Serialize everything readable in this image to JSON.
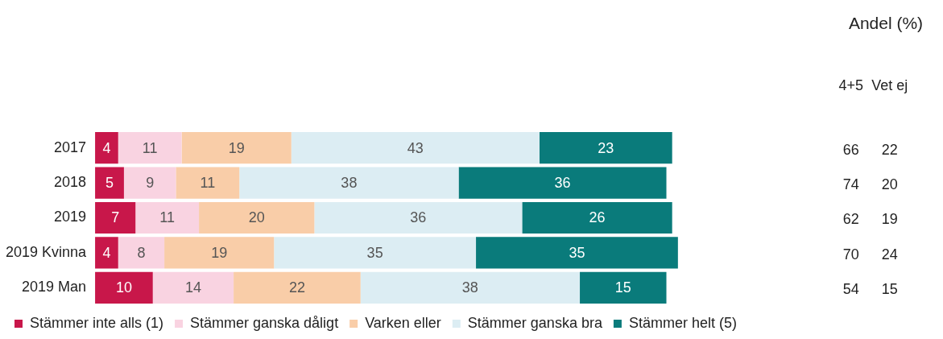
{
  "chart_data": [
    {
      "type": "bar",
      "orientation": "horizontal",
      "stacked": true,
      "data_labels": true,
      "legend": "bottom",
      "categories": [
        "2017",
        "2018",
        "2019",
        "2019 Kvinna",
        "2019 Man"
      ],
      "series": [
        {
          "name": "Stämmer inte alls (1)",
          "color": "#c8174a",
          "values": [
            4,
            5,
            7,
            4,
            10
          ]
        },
        {
          "name": "Stämmer ganska dåligt",
          "color": "#f9d3e1",
          "values": [
            11,
            9,
            11,
            8,
            14
          ]
        },
        {
          "name": "Varken eller",
          "color": "#f9cda8",
          "values": [
            19,
            11,
            20,
            19,
            22
          ]
        },
        {
          "name": "Stämmer ganska bra",
          "color": "#dcedf3",
          "values": [
            43,
            38,
            36,
            35,
            38
          ]
        },
        {
          "name": "Stämmer helt (5)",
          "color": "#0a7b7b",
          "values": [
            23,
            36,
            26,
            35,
            15
          ]
        }
      ]
    },
    {
      "type": "heatmap",
      "title": "Andel (%)",
      "categories": [
        "4+5",
        "Vet ej"
      ],
      "y_categories": [
        null,
        null,
        null,
        null,
        null
      ],
      "data_labels": true,
      "cells": [
        [
          66,
          22
        ],
        [
          74,
          20
        ],
        [
          62,
          19
        ],
        [
          70,
          24
        ],
        [
          54,
          15
        ]
      ]
    }
  ]
}
